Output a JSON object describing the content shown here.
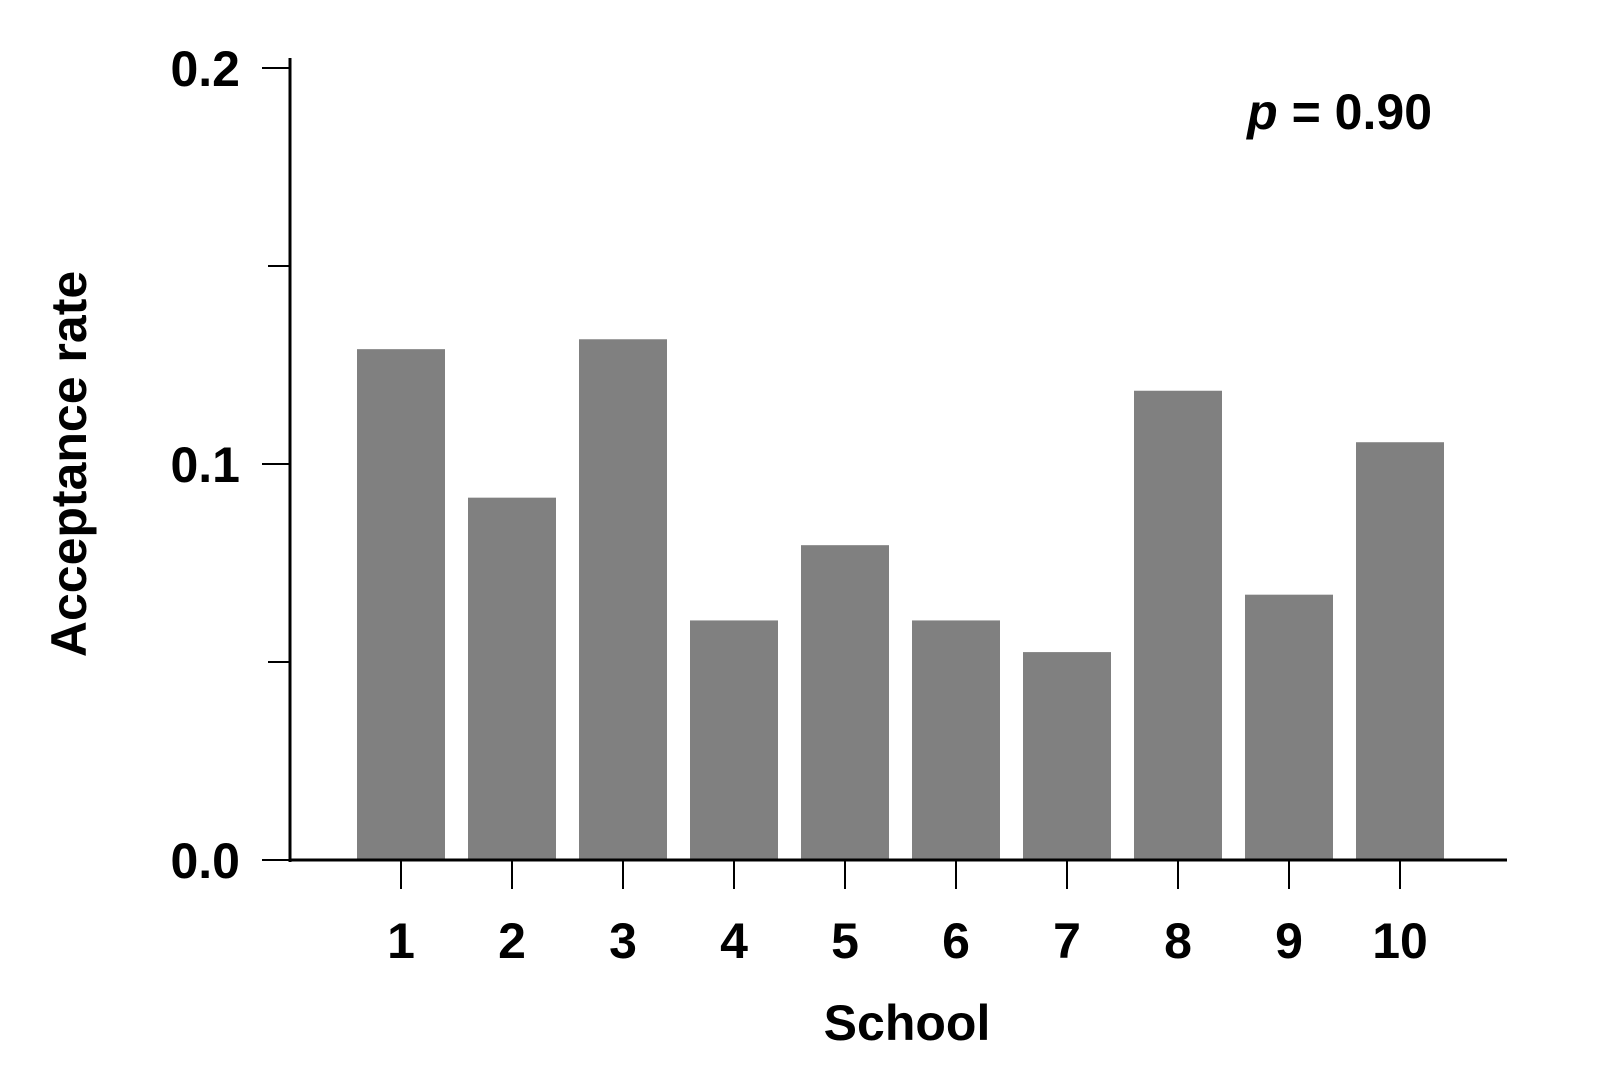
{
  "chart_data": {
    "type": "bar",
    "title": "",
    "xlabel": "School",
    "ylabel": "Acceptance rate",
    "categories": [
      "1",
      "2",
      "3",
      "4",
      "5",
      "6",
      "7",
      "8",
      "9",
      "10"
    ],
    "values": [
      0.129,
      0.0915,
      0.1315,
      0.0605,
      0.0795,
      0.0605,
      0.0525,
      0.1185,
      0.067,
      0.1055
    ],
    "ylim": [
      0,
      0.2
    ],
    "yticks_major": [
      "0.0",
      "0.1",
      "0.2"
    ],
    "yticks_major_values": [
      0,
      0.1,
      0.2
    ],
    "yticks_minor_values": [
      0.05,
      0.15
    ],
    "bar_color": "#808080",
    "grid": false,
    "annotation": {
      "p_symbol": "p",
      "rest": " = 0.90"
    }
  }
}
